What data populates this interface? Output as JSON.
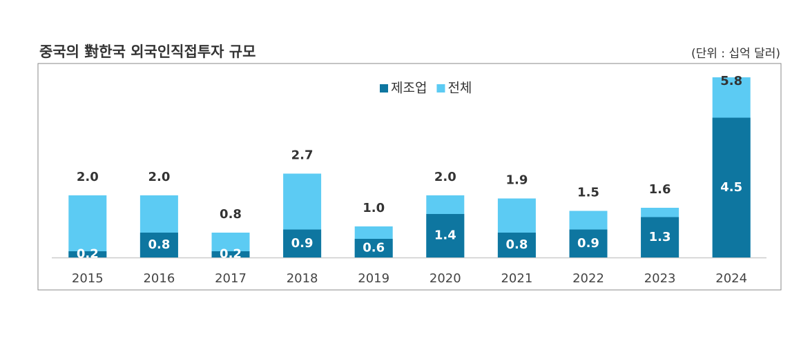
{
  "chart_data": {
    "type": "overlap-bar",
    "title": "중국의 對한국 외국인직접투자 규모",
    "unit": "(단위 : 십억 달러)",
    "categories": [
      "2015",
      "2016",
      "2017",
      "2018",
      "2019",
      "2020",
      "2021",
      "2022",
      "2023",
      "2024"
    ],
    "series": [
      {
        "name": "제조업",
        "color": "#0e76a0",
        "values": [
          0.2,
          0.8,
          0.2,
          0.9,
          0.6,
          1.4,
          0.8,
          0.9,
          1.3,
          4.5
        ]
      },
      {
        "name": "전체",
        "color": "#5ccbf3",
        "values": [
          2.0,
          2.0,
          0.8,
          2.7,
          1.0,
          2.0,
          1.9,
          1.5,
          1.6,
          5.8
        ],
        "value_labels": [
          "2.0",
          "2.0",
          "0.8",
          "2.7",
          "1.0",
          "2.0",
          "1.9",
          "1.5",
          "1.6",
          "5.8"
        ]
      }
    ],
    "legend": "top-center"
  }
}
